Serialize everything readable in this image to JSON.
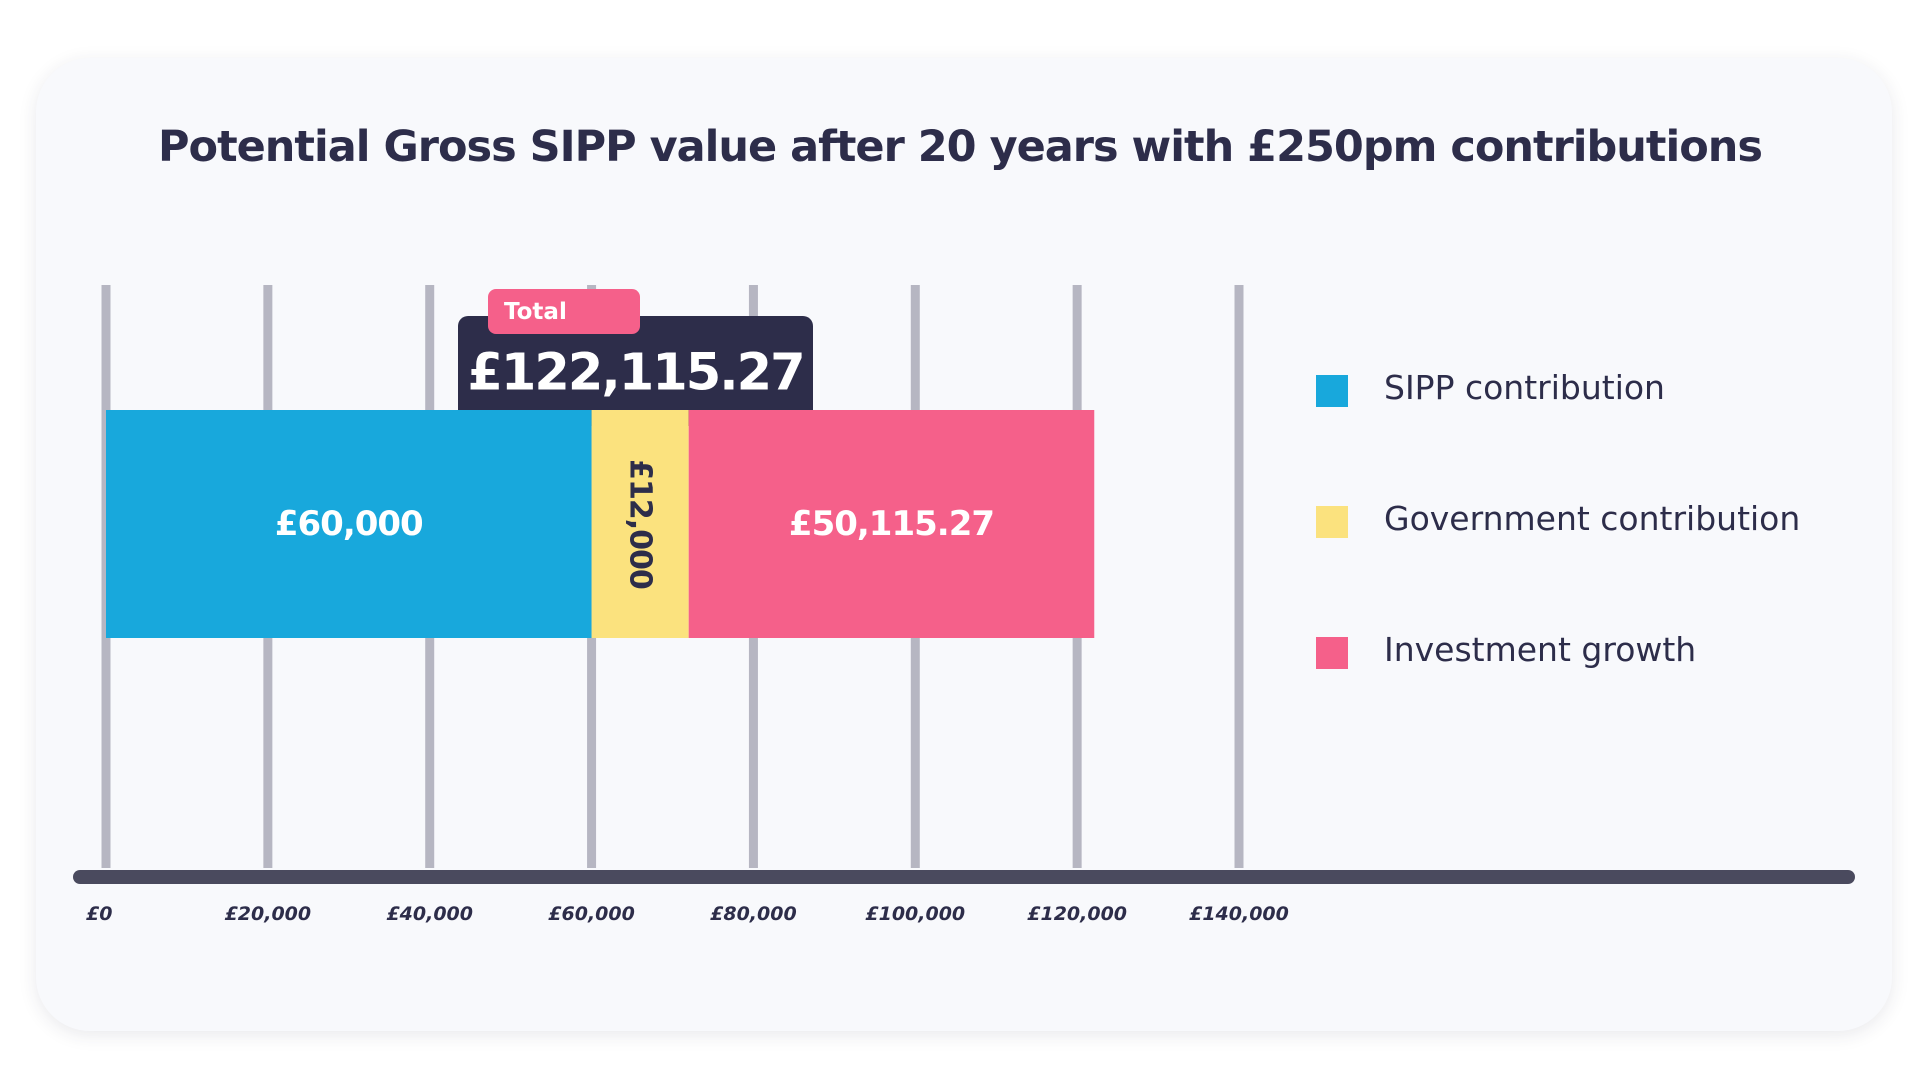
{
  "chart_data": {
    "type": "bar",
    "orientation": "horizontal",
    "stacked": true,
    "title": "Potential Gross SIPP value after 20 years with £250pm contributions",
    "xlim": [
      0,
      140000
    ],
    "x_ticks": [
      0,
      20000,
      40000,
      60000,
      80000,
      100000,
      120000,
      140000
    ],
    "x_tick_labels": [
      "£0",
      "£20,000",
      "£40,000",
      "£60,000",
      "£80,000",
      "£100,000",
      "£120,000",
      "£140,000"
    ],
    "grid": true,
    "legend_position": "right",
    "series": [
      {
        "name": "SIPP contribution",
        "value": 60000,
        "label": "£60,000",
        "color": "#18a8dc",
        "label_color": "#ffffff",
        "label_rotated": false
      },
      {
        "name": "Government contribution",
        "value": 12000,
        "label": "£12,000",
        "color": "#fbe27e",
        "label_color": "#2d2d4a",
        "label_rotated": true
      },
      {
        "name": "Investment growth",
        "value": 50115.27,
        "label": "£50,115.27",
        "color": "#f5608a",
        "label_color": "#ffffff",
        "label_rotated": false
      }
    ],
    "total": {
      "tag": "Total",
      "value": 122115.27,
      "label": "£122,115.27",
      "box_color": "#2d2d4a",
      "tag_color": "#f5608a"
    },
    "colors": {
      "axis": "#4a4a5e",
      "grid": "#b6b6c2",
      "text": "#2d2d4a",
      "background": "#f8f9fc"
    }
  }
}
